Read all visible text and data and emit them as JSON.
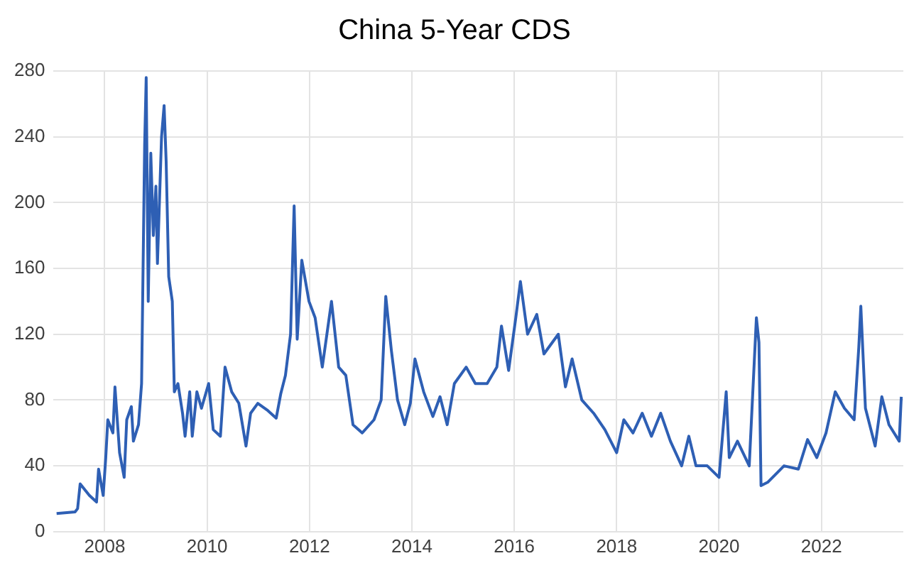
{
  "chart_data": {
    "type": "line",
    "title": "China 5-Year CDS",
    "xlim": [
      2007.0,
      2023.6
    ],
    "xticks": [
      2008,
      2010,
      2012,
      2014,
      2016,
      2018,
      2020,
      2022
    ],
    "ylim": [
      0,
      280
    ],
    "yticks": [
      0,
      40,
      80,
      120,
      160,
      200,
      240,
      280
    ],
    "grid": true,
    "legend": false,
    "marker": "none",
    "line_style": "solid",
    "series": [
      {
        "color": "#2e5fb4",
        "x": [
          2007.06,
          2007.42,
          2007.47,
          2007.52,
          2007.7,
          2007.84,
          2007.88,
          2007.97,
          2008.02,
          2008.06,
          2008.16,
          2008.2,
          2008.29,
          2008.38,
          2008.43,
          2008.52,
          2008.56,
          2008.66,
          2008.72,
          2008.78,
          2008.81,
          2008.85,
          2008.9,
          2008.95,
          2009.0,
          2009.03,
          2009.11,
          2009.16,
          2009.2,
          2009.25,
          2009.32,
          2009.36,
          2009.43,
          2009.52,
          2009.57,
          2009.66,
          2009.71,
          2009.8,
          2009.89,
          2010.03,
          2010.12,
          2010.26,
          2010.35,
          2010.48,
          2010.62,
          2010.76,
          2010.85,
          2010.99,
          2011.17,
          2011.35,
          2011.44,
          2011.53,
          2011.63,
          2011.7,
          2011.76,
          2011.85,
          2011.99,
          2012.11,
          2012.25,
          2012.43,
          2012.57,
          2012.71,
          2012.85,
          2013.03,
          2013.26,
          2013.4,
          2013.49,
          2013.6,
          2013.72,
          2013.86,
          2013.97,
          2014.06,
          2014.23,
          2014.41,
          2014.55,
          2014.69,
          2014.83,
          2015.06,
          2015.24,
          2015.47,
          2015.66,
          2015.75,
          2015.89,
          2016.03,
          2016.12,
          2016.26,
          2016.44,
          2016.58,
          2016.86,
          2017.0,
          2017.13,
          2017.32,
          2017.55,
          2017.77,
          2018.0,
          2018.14,
          2018.32,
          2018.5,
          2018.68,
          2018.86,
          2019.05,
          2019.27,
          2019.41,
          2019.55,
          2019.77,
          2020.0,
          2020.14,
          2020.2,
          2020.36,
          2020.59,
          2020.73,
          2020.78,
          2020.82,
          2020.95,
          2021.27,
          2021.55,
          2021.73,
          2021.91,
          2022.09,
          2022.27,
          2022.45,
          2022.64,
          2022.73,
          2022.77,
          2022.86,
          2023.05,
          2023.18,
          2023.32,
          2023.52,
          2023.56
        ],
        "values": [
          11,
          12,
          14,
          29,
          22,
          18,
          38,
          22,
          45,
          68,
          60,
          88,
          48,
          33,
          68,
          76,
          55,
          65,
          90,
          235,
          276,
          140,
          230,
          180,
          210,
          163,
          240,
          259,
          225,
          155,
          140,
          85,
          90,
          72,
          58,
          85,
          58,
          85,
          75,
          90,
          62,
          58,
          100,
          85,
          78,
          52,
          72,
          78,
          74,
          69,
          84,
          95,
          120,
          198,
          117,
          165,
          140,
          130,
          100,
          140,
          100,
          95,
          65,
          60,
          68,
          80,
          143,
          110,
          80,
          65,
          78,
          105,
          85,
          70,
          82,
          65,
          90,
          100,
          90,
          90,
          100,
          125,
          98,
          130,
          152,
          120,
          132,
          108,
          120,
          88,
          105,
          80,
          72,
          62,
          48,
          68,
          60,
          72,
          58,
          72,
          55,
          40,
          58,
          40,
          40,
          33,
          85,
          45,
          55,
          40,
          130,
          115,
          28,
          30,
          40,
          38,
          56,
          45,
          60,
          85,
          75,
          68,
          112,
          137,
          75,
          52,
          82,
          65,
          55,
          82
        ]
      }
    ]
  }
}
